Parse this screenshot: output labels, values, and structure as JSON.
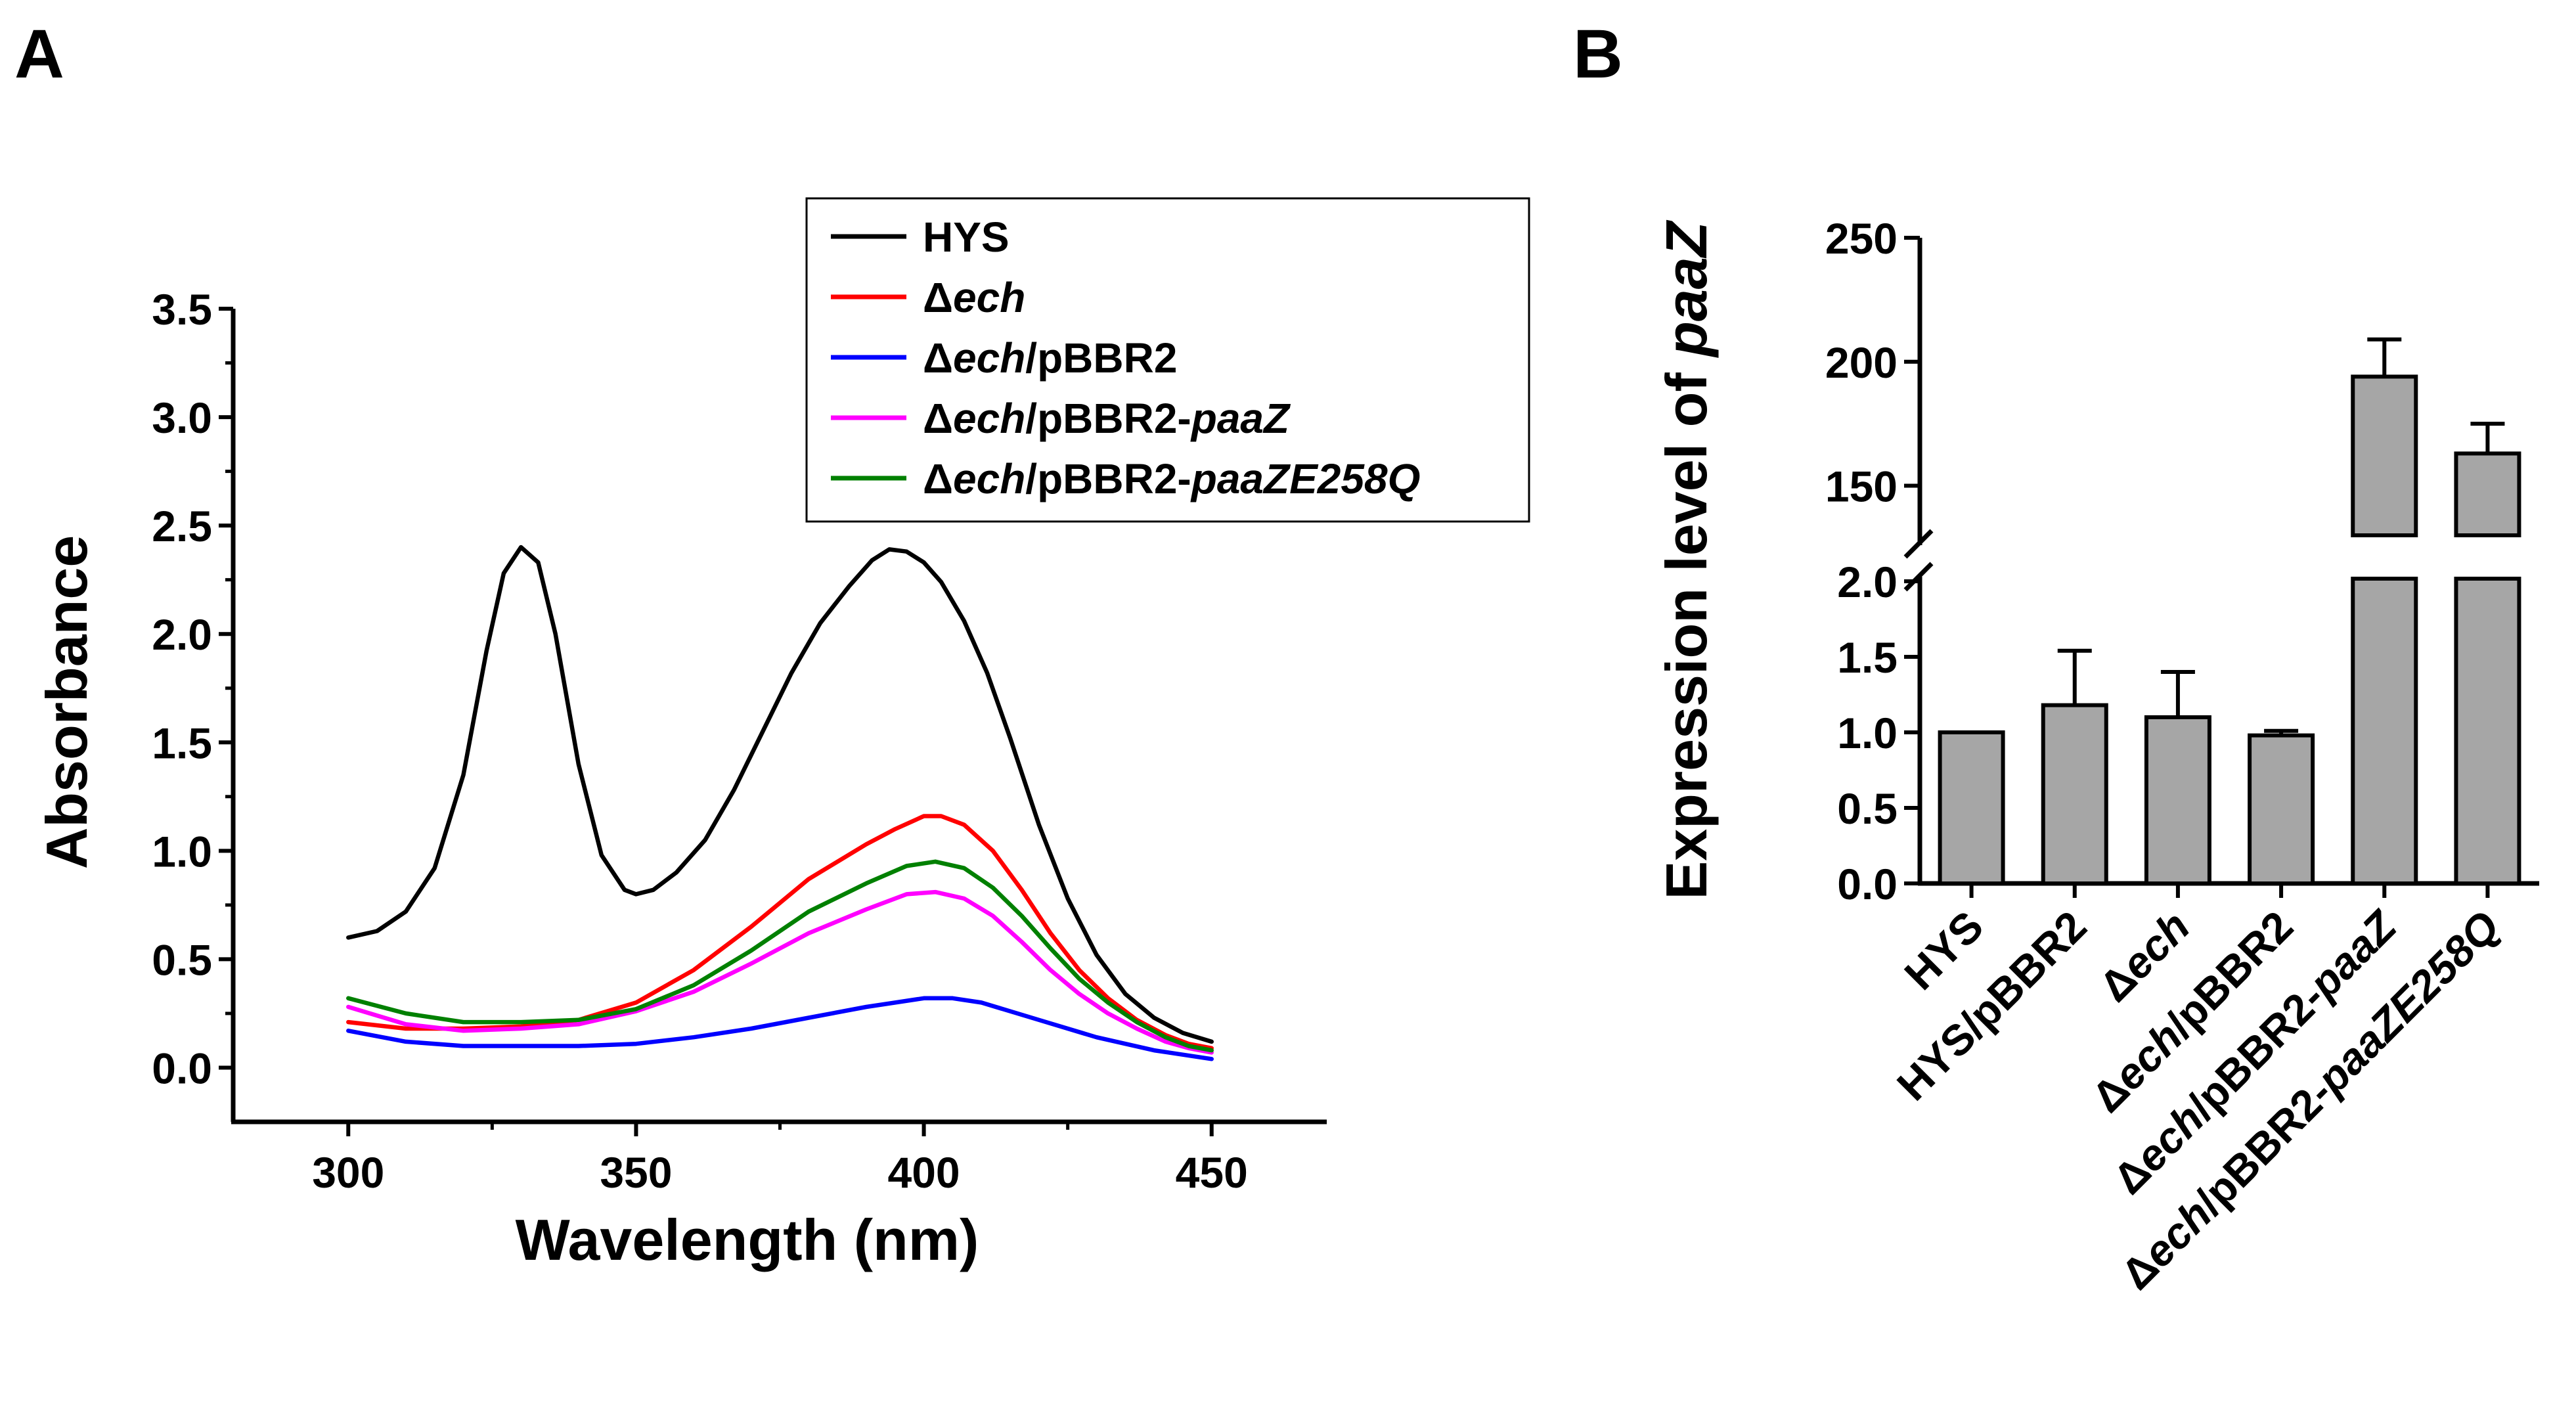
{
  "panels": {
    "a_label": "A",
    "b_label": "B"
  },
  "chart_data": [
    {
      "type": "line",
      "xlabel": "Wavelength (nm)",
      "ylabel": "Absorbance",
      "xlim": [
        280,
        470
      ],
      "ylim": [
        -0.25,
        3.5
      ],
      "xticks": [
        "300",
        "350",
        "400",
        "450"
      ],
      "yticks": [
        "0.0",
        "0.5",
        "1.0",
        "1.5",
        "2.0",
        "2.5",
        "3.0",
        "3.5"
      ],
      "grid": false,
      "legend_position": "top-right",
      "series": [
        {
          "name": "HYS",
          "name_parts": [
            {
              "t": "HYS",
              "i": false
            }
          ],
          "color": "#000000",
          "points": [
            [
              300,
              0.6
            ],
            [
              305,
              0.63
            ],
            [
              310,
              0.72
            ],
            [
              315,
              0.92
            ],
            [
              320,
              1.35
            ],
            [
              324,
              1.92
            ],
            [
              327,
              2.28
            ],
            [
              330,
              2.4
            ],
            [
              333,
              2.33
            ],
            [
              336,
              2.0
            ],
            [
              340,
              1.4
            ],
            [
              344,
              0.98
            ],
            [
              348,
              0.82
            ],
            [
              350,
              0.8
            ],
            [
              353,
              0.82
            ],
            [
              357,
              0.9
            ],
            [
              362,
              1.05
            ],
            [
              367,
              1.28
            ],
            [
              372,
              1.55
            ],
            [
              377,
              1.82
            ],
            [
              382,
              2.05
            ],
            [
              387,
              2.22
            ],
            [
              391,
              2.34
            ],
            [
              394,
              2.39
            ],
            [
              397,
              2.38
            ],
            [
              400,
              2.33
            ],
            [
              403,
              2.24
            ],
            [
              407,
              2.06
            ],
            [
              411,
              1.82
            ],
            [
              415,
              1.52
            ],
            [
              420,
              1.12
            ],
            [
              425,
              0.78
            ],
            [
              430,
              0.52
            ],
            [
              435,
              0.34
            ],
            [
              440,
              0.23
            ],
            [
              445,
              0.16
            ],
            [
              450,
              0.12
            ]
          ]
        },
        {
          "name": "Δech",
          "name_parts": [
            {
              "t": "Δ",
              "i": false
            },
            {
              "t": "ech",
              "i": true
            }
          ],
          "color": "#ff0000",
          "points": [
            [
              300,
              0.21
            ],
            [
              310,
              0.18
            ],
            [
              320,
              0.18
            ],
            [
              330,
              0.19
            ],
            [
              340,
              0.22
            ],
            [
              350,
              0.3
            ],
            [
              360,
              0.45
            ],
            [
              370,
              0.65
            ],
            [
              380,
              0.87
            ],
            [
              390,
              1.03
            ],
            [
              395,
              1.1
            ],
            [
              400,
              1.16
            ],
            [
              403,
              1.16
            ],
            [
              407,
              1.12
            ],
            [
              412,
              1.0
            ],
            [
              417,
              0.82
            ],
            [
              422,
              0.62
            ],
            [
              427,
              0.45
            ],
            [
              432,
              0.32
            ],
            [
              437,
              0.22
            ],
            [
              442,
              0.15
            ],
            [
              446,
              0.11
            ],
            [
              450,
              0.09
            ]
          ]
        },
        {
          "name": "Δech/pBBR2",
          "name_parts": [
            {
              "t": "Δ",
              "i": false
            },
            {
              "t": "ech",
              "i": true
            },
            {
              "t": "/pBBR2",
              "i": false
            }
          ],
          "color": "#0000ff",
          "points": [
            [
              300,
              0.17
            ],
            [
              310,
              0.12
            ],
            [
              320,
              0.1
            ],
            [
              330,
              0.1
            ],
            [
              340,
              0.1
            ],
            [
              350,
              0.11
            ],
            [
              360,
              0.14
            ],
            [
              370,
              0.18
            ],
            [
              380,
              0.23
            ],
            [
              390,
              0.28
            ],
            [
              400,
              0.32
            ],
            [
              405,
              0.32
            ],
            [
              410,
              0.3
            ],
            [
              420,
              0.22
            ],
            [
              430,
              0.14
            ],
            [
              440,
              0.08
            ],
            [
              450,
              0.04
            ]
          ]
        },
        {
          "name": "Δech/pBBR2-paaZ",
          "name_parts": [
            {
              "t": "Δ",
              "i": false
            },
            {
              "t": "ech",
              "i": true
            },
            {
              "t": "/pBBR2-",
              "i": false
            },
            {
              "t": "paaZ",
              "i": true
            }
          ],
          "color": "#ff00ff",
          "points": [
            [
              300,
              0.28
            ],
            [
              310,
              0.2
            ],
            [
              320,
              0.17
            ],
            [
              330,
              0.18
            ],
            [
              340,
              0.2
            ],
            [
              350,
              0.26
            ],
            [
              360,
              0.35
            ],
            [
              370,
              0.48
            ],
            [
              380,
              0.62
            ],
            [
              390,
              0.73
            ],
            [
              397,
              0.8
            ],
            [
              402,
              0.81
            ],
            [
              407,
              0.78
            ],
            [
              412,
              0.7
            ],
            [
              417,
              0.58
            ],
            [
              422,
              0.45
            ],
            [
              427,
              0.34
            ],
            [
              432,
              0.25
            ],
            [
              437,
              0.18
            ],
            [
              442,
              0.12
            ],
            [
              446,
              0.09
            ],
            [
              450,
              0.07
            ]
          ]
        },
        {
          "name": "Δech/pBBR2-paaZE258Q",
          "name_parts": [
            {
              "t": "Δ",
              "i": false
            },
            {
              "t": "ech",
              "i": true
            },
            {
              "t": "/pBBR2-",
              "i": false
            },
            {
              "t": "paaZE258Q",
              "i": true
            }
          ],
          "color": "#008000",
          "points": [
            [
              300,
              0.32
            ],
            [
              310,
              0.25
            ],
            [
              320,
              0.21
            ],
            [
              330,
              0.21
            ],
            [
              340,
              0.22
            ],
            [
              350,
              0.27
            ],
            [
              360,
              0.38
            ],
            [
              370,
              0.54
            ],
            [
              380,
              0.72
            ],
            [
              390,
              0.85
            ],
            [
              397,
              0.93
            ],
            [
              402,
              0.95
            ],
            [
              407,
              0.92
            ],
            [
              412,
              0.83
            ],
            [
              417,
              0.7
            ],
            [
              422,
              0.55
            ],
            [
              427,
              0.41
            ],
            [
              432,
              0.3
            ],
            [
              437,
              0.21
            ],
            [
              442,
              0.14
            ],
            [
              446,
              0.1
            ],
            [
              450,
              0.08
            ]
          ]
        }
      ]
    },
    {
      "type": "bar",
      "ylabel_parts": [
        {
          "t": "Expression level of ",
          "i": false
        },
        {
          "t": "paaZ",
          "i": true
        }
      ],
      "categories": [
        "HYS",
        "HYS/pBBR2",
        "Δech",
        "Δech/pBBR2",
        "Δech/pBBR2-paaZ",
        "Δech/pBBR2-paaZE258Q"
      ],
      "category_parts": [
        [
          {
            "t": "HYS",
            "i": false
          }
        ],
        [
          {
            "t": "HYS/pBBR2",
            "i": false
          }
        ],
        [
          {
            "t": "Δ",
            "i": false
          },
          {
            "t": "ech",
            "i": true
          }
        ],
        [
          {
            "t": "Δ",
            "i": false
          },
          {
            "t": "ech",
            "i": true
          },
          {
            "t": "/pBBR2",
            "i": false
          }
        ],
        [
          {
            "t": "Δ",
            "i": false
          },
          {
            "t": "ech",
            "i": true
          },
          {
            "t": "/pBBR2-",
            "i": false
          },
          {
            "t": "paaZ",
            "i": true
          }
        ],
        [
          {
            "t": "Δ",
            "i": false
          },
          {
            "t": "ech",
            "i": true
          },
          {
            "t": "/pBBR2-",
            "i": false
          },
          {
            "t": "paaZE258Q",
            "i": true
          }
        ]
      ],
      "values": [
        1.0,
        1.18,
        1.1,
        0.98,
        194,
        163
      ],
      "errors": [
        0,
        0.36,
        0.3,
        0.03,
        15,
        12
      ],
      "bar_color": "#a6a6a6",
      "y_axis_break": true,
      "ylim_lower": [
        0,
        2.0
      ],
      "ylim_upper": [
        130,
        250
      ],
      "yticks_lower": [
        "0.0",
        "0.5",
        "1.0",
        "1.5",
        "2.0"
      ],
      "yticks_upper": [
        "150",
        "200",
        "250"
      ],
      "grid": false
    }
  ]
}
